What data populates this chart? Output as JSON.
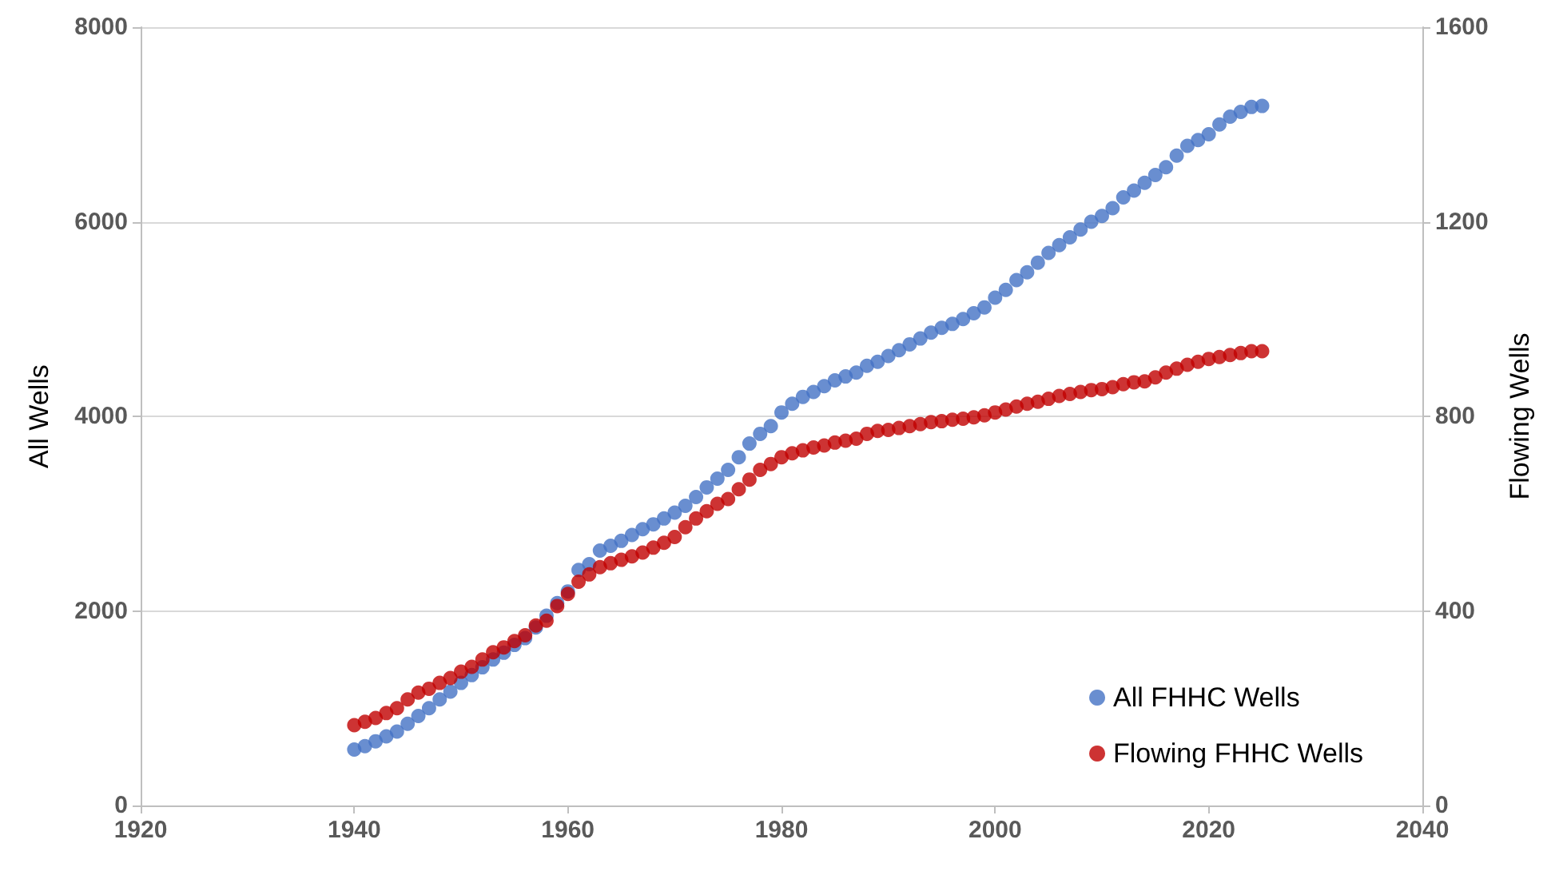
{
  "chart_data": {
    "type": "scatter",
    "ylabel": "All Wells",
    "y2label": "Flowing Wells",
    "x": [
      1940,
      1941,
      1942,
      1943,
      1944,
      1945,
      1946,
      1947,
      1948,
      1949,
      1950,
      1951,
      1952,
      1953,
      1954,
      1955,
      1956,
      1957,
      1958,
      1959,
      1960,
      1961,
      1962,
      1963,
      1964,
      1965,
      1966,
      1967,
      1968,
      1969,
      1970,
      1971,
      1972,
      1973,
      1974,
      1975,
      1976,
      1977,
      1978,
      1979,
      1980,
      1981,
      1982,
      1983,
      1984,
      1985,
      1986,
      1987,
      1988,
      1989,
      1990,
      1991,
      1992,
      1993,
      1994,
      1995,
      1996,
      1997,
      1998,
      1999,
      2000,
      2001,
      2002,
      2003,
      2004,
      2005,
      2006,
      2007,
      2008,
      2009,
      2010,
      2011,
      2012,
      2013,
      2014,
      2015,
      2016,
      2017,
      2018,
      2019,
      2020,
      2021,
      2022,
      2023,
      2024,
      2025
    ],
    "series": [
      {
        "name": "All FHHC Wells",
        "color": "#4472c4",
        "values": [
          575,
          610,
          660,
          710,
          760,
          840,
          920,
          1000,
          1090,
          1170,
          1260,
          1340,
          1420,
          1500,
          1570,
          1650,
          1720,
          1830,
          1950,
          2080,
          2200,
          2420,
          2480,
          2620,
          2670,
          2720,
          2780,
          2840,
          2890,
          2950,
          3010,
          3080,
          3170,
          3270,
          3360,
          3450,
          3580,
          3720,
          3820,
          3900,
          4040,
          4130,
          4200,
          4250,
          4310,
          4370,
          4410,
          4450,
          4520,
          4560,
          4620,
          4680,
          4740,
          4800,
          4860,
          4910,
          4950,
          5000,
          5060,
          5120,
          5220,
          5300,
          5400,
          5480,
          5580,
          5680,
          5760,
          5840,
          5920,
          6000,
          6060,
          6140,
          6250,
          6320,
          6400,
          6480,
          6560,
          6680,
          6780,
          6840,
          6900,
          7000,
          7080,
          7130,
          7180,
          7190
        ]
      },
      {
        "name": "Flowing FHHC Wells",
        "color": "#c00000",
        "axis": "y2",
        "values": [
          165,
          172,
          180,
          190,
          200,
          218,
          232,
          240,
          252,
          262,
          275,
          285,
          300,
          315,
          325,
          338,
          350,
          370,
          380,
          410,
          435,
          460,
          475,
          490,
          498,
          505,
          512,
          520,
          530,
          540,
          552,
          572,
          590,
          605,
          620,
          630,
          650,
          670,
          690,
          702,
          716,
          724,
          730,
          736,
          740,
          746,
          750,
          754,
          764,
          770,
          772,
          776,
          780,
          784,
          788,
          790,
          793,
          795,
          798,
          802,
          808,
          814,
          820,
          826,
          830,
          836,
          842,
          846,
          850,
          854,
          856,
          860,
          866,
          870,
          872,
          880,
          890,
          898,
          906,
          912,
          918,
          922,
          926,
          930,
          934,
          934
        ]
      }
    ],
    "xlim": [
      1920,
      2040
    ],
    "xticks": [
      1920,
      1940,
      1960,
      1980,
      2000,
      2020,
      2040
    ],
    "ylim": [
      0,
      8000
    ],
    "yticks": [
      0,
      2000,
      4000,
      6000,
      8000
    ],
    "y2lim": [
      0,
      1600
    ],
    "y2ticks": [
      0,
      400,
      800,
      1200,
      1600
    ],
    "grid": "y",
    "legend": "bottom right",
    "marker": "circle"
  }
}
